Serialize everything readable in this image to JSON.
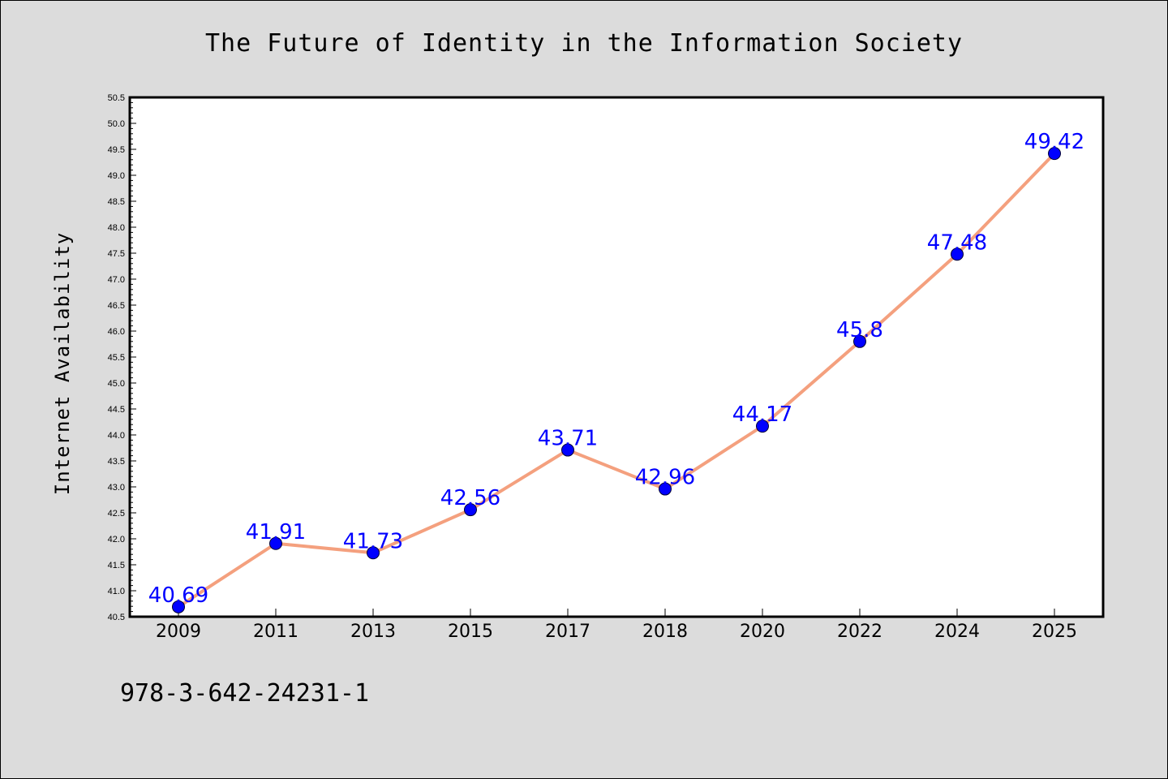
{
  "colors": {
    "background": "#dcdcdc",
    "plot_background": "#ffffff",
    "line": "#f4a07e",
    "marker": "#0000ff",
    "data_label": "#0000ff"
  },
  "footer": {
    "text": "978-3-642-24231-1"
  },
  "chart_data": {
    "type": "line",
    "title": "The Future of Identity in the Information Society",
    "xlabel": "",
    "ylabel": "Internet Availability",
    "categories": [
      "2009",
      "2011",
      "2013",
      "2015",
      "2017",
      "2018",
      "2020",
      "2022",
      "2024",
      "2025"
    ],
    "series": [
      {
        "values": [
          40.69,
          41.91,
          41.73,
          42.56,
          43.71,
          42.96,
          44.17,
          45.8,
          47.48,
          49.42
        ],
        "labels": [
          "40.69",
          "41.91",
          "41.73",
          "42.56",
          "43.71",
          "42.96",
          "44.17",
          "45.8",
          "47.48",
          "49.42"
        ]
      }
    ],
    "ylim": [
      40.5,
      50.5
    ],
    "yticks": [
      "40.5",
      "41.0",
      "41.5",
      "42.0",
      "42.5",
      "43.0",
      "43.5",
      "44.0",
      "44.5",
      "45.0",
      "45.5",
      "46.0",
      "46.5",
      "47.0",
      "47.5",
      "48.0",
      "48.5",
      "49.0",
      "49.5",
      "50.0",
      "50.5"
    ],
    "grid": false,
    "legend": "none"
  }
}
